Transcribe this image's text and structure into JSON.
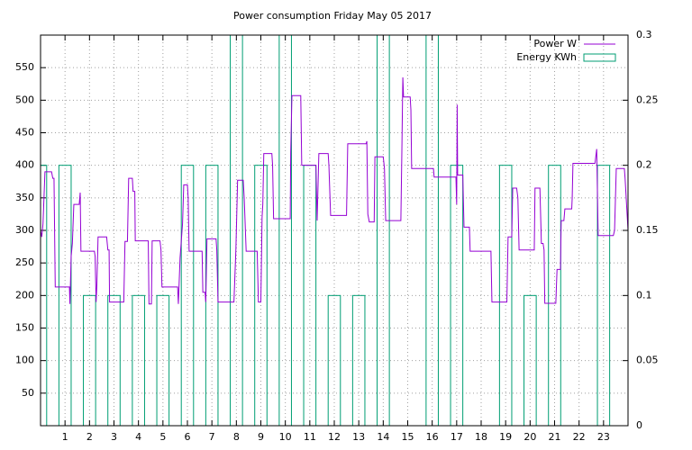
{
  "chart_data": {
    "type": "line",
    "title": "Power consumption Friday May 05 2017",
    "xlim": [
      0,
      24
    ],
    "xticks": [
      1,
      2,
      3,
      4,
      5,
      6,
      7,
      8,
      9,
      10,
      11,
      12,
      13,
      14,
      15,
      16,
      17,
      18,
      19,
      20,
      21,
      22,
      23
    ],
    "ylim": [
      0,
      600
    ],
    "yticks": [
      50,
      100,
      150,
      200,
      250,
      300,
      350,
      400,
      450,
      500,
      550
    ],
    "y2lim": [
      0,
      0.3
    ],
    "y2ticks": [
      0,
      0.05,
      0.1,
      0.15,
      0.2,
      0.25,
      0.3
    ],
    "grid": true,
    "legend": "top-right",
    "series": [
      {
        "name": "Power W",
        "type": "line",
        "color": "#9400d3",
        "x": [
          0,
          0.05,
          0.1,
          0.18,
          0.45,
          0.5,
          0.55,
          0.6,
          1.18,
          1.2,
          1.25,
          1.3,
          1.36,
          1.58,
          1.62,
          1.65,
          2.2,
          2.23,
          2.27,
          2.3,
          2.35,
          2.7,
          2.75,
          2.8,
          2.82,
          3.4,
          3.45,
          3.55,
          3.6,
          3.75,
          3.78,
          3.85,
          3.87,
          4.4,
          4.43,
          4.53,
          4.56,
          4.88,
          4.92,
          4.96,
          5.6,
          5.63,
          5.7,
          5.8,
          5.85,
          6.0,
          6.03,
          6.07,
          6.6,
          6.63,
          6.72,
          6.75,
          6.8,
          7.17,
          7.2,
          7.25,
          7.9,
          7.98,
          8.05,
          8.28,
          8.32,
          8.4,
          8.85,
          8.9,
          9.0,
          9.05,
          9.08,
          9.12,
          9.45,
          9.48,
          9.52,
          10.2,
          10.22,
          10.27,
          10.63,
          10.67,
          11.25,
          11.3,
          11.37,
          11.75,
          11.78,
          11.85,
          12.5,
          12.55,
          13.3,
          13.33,
          13.37,
          13.43,
          13.63,
          13.66,
          14.0,
          14.05,
          14.1,
          14.72,
          14.76,
          14.8,
          14.83,
          15.1,
          15.13,
          15.16,
          16.05,
          16.08,
          16.97,
          17.0,
          17.02,
          17.04,
          17.25,
          17.3,
          17.52,
          17.55,
          18.4,
          18.44,
          19.05,
          19.1,
          19.25,
          19.29,
          19.45,
          19.5,
          19.55,
          20.17,
          20.2,
          20.4,
          20.46,
          20.53,
          20.57,
          20.6,
          21.05,
          21.1,
          21.24,
          21.27,
          21.38,
          21.42,
          21.7,
          21.72,
          21.75,
          22.65,
          22.72,
          22.78,
          23.4,
          23.45,
          23.52,
          23.85,
          23.88,
          24
        ],
        "values": [
          300,
          290,
          310,
          390,
          390,
          380,
          380,
          213,
          213,
          187,
          260,
          280,
          340,
          340,
          358,
          268,
          268,
          260,
          190,
          215,
          290,
          290,
          270,
          270,
          190,
          190,
          283,
          283,
          380,
          380,
          360,
          360,
          284,
          284,
          187,
          187,
          284,
          284,
          270,
          213,
          213,
          187,
          258,
          310,
          370,
          370,
          350,
          268,
          268,
          205,
          205,
          190,
          287,
          287,
          270,
          190,
          190,
          270,
          377,
          377,
          350,
          268,
          268,
          190,
          190,
          320,
          340,
          418,
          418,
          400,
          318,
          318,
          420,
          507,
          507,
          400,
          400,
          315,
          418,
          418,
          400,
          323,
          323,
          433,
          433,
          437,
          325,
          313,
          313,
          413,
          413,
          395,
          315,
          315,
          420,
          535,
          505,
          505,
          485,
          395,
          395,
          382,
          382,
          340,
          493,
          385,
          385,
          305,
          305,
          268,
          268,
          190,
          190,
          290,
          290,
          365,
          365,
          350,
          270,
          270,
          365,
          365,
          280,
          280,
          270,
          188,
          188,
          240,
          240,
          315,
          315,
          333,
          333,
          350,
          403,
          403,
          425,
          292,
          292,
          300,
          395,
          395,
          380,
          300
        ]
      },
      {
        "name": "Energy KWh",
        "type": "bar",
        "axis": "y2",
        "color": "#009e73",
        "x": [
          0,
          1,
          2,
          3,
          4,
          5,
          6,
          7,
          8,
          9,
          10,
          11,
          12,
          13,
          14,
          15,
          16,
          17,
          18,
          19,
          20,
          21,
          22,
          23
        ],
        "values": [
          0.2,
          0.2,
          0.1,
          0.1,
          0.1,
          0.1,
          0.2,
          0.2,
          0.3,
          0.2,
          0.3,
          0.2,
          0.1,
          0.1,
          0.3,
          0,
          0.3,
          0.2,
          0,
          0.2,
          0.1,
          0.2,
          0,
          0.2
        ]
      }
    ]
  }
}
